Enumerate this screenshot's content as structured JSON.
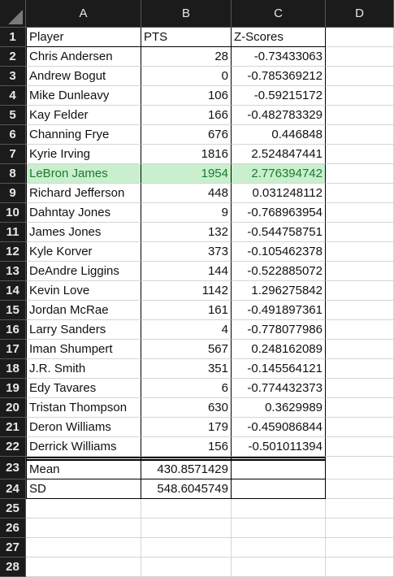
{
  "columns": [
    "A",
    "B",
    "C",
    "D"
  ],
  "header_row": {
    "num": "1",
    "player": "Player",
    "pts": "PTS",
    "z": "Z-Scores"
  },
  "rows": [
    {
      "num": "2",
      "player": "Chris Andersen",
      "pts": "28",
      "z": "-0.73433063"
    },
    {
      "num": "3",
      "player": "Andrew Bogut",
      "pts": "0",
      "z": "-0.785369212"
    },
    {
      "num": "4",
      "player": "Mike Dunleavy",
      "pts": "106",
      "z": "-0.59215172"
    },
    {
      "num": "5",
      "player": "Kay Felder",
      "pts": "166",
      "z": "-0.482783329"
    },
    {
      "num": "6",
      "player": "Channing Frye",
      "pts": "676",
      "z": "0.446848"
    },
    {
      "num": "7",
      "player": "Kyrie Irving",
      "pts": "1816",
      "z": "2.524847441"
    },
    {
      "num": "8",
      "player": "LeBron James",
      "pts": "1954",
      "z": "2.776394742",
      "highlight": true
    },
    {
      "num": "9",
      "player": "Richard Jefferson",
      "pts": "448",
      "z": "0.031248112"
    },
    {
      "num": "10",
      "player": "Dahntay Jones",
      "pts": "9",
      "z": "-0.768963954"
    },
    {
      "num": "11",
      "player": "James Jones",
      "pts": "132",
      "z": "-0.544758751"
    },
    {
      "num": "12",
      "player": "Kyle Korver",
      "pts": "373",
      "z": "-0.105462378"
    },
    {
      "num": "13",
      "player": "DeAndre Liggins",
      "pts": "144",
      "z": "-0.522885072"
    },
    {
      "num": "14",
      "player": "Kevin Love",
      "pts": "1142",
      "z": "1.296275842"
    },
    {
      "num": "15",
      "player": "Jordan McRae",
      "pts": "161",
      "z": "-0.491897361"
    },
    {
      "num": "16",
      "player": "Larry Sanders",
      "pts": "4",
      "z": "-0.778077986"
    },
    {
      "num": "17",
      "player": "Iman Shumpert",
      "pts": "567",
      "z": "0.248162089"
    },
    {
      "num": "18",
      "player": "J.R. Smith",
      "pts": "351",
      "z": "-0.145564121"
    },
    {
      "num": "19",
      "player": "Edy Tavares",
      "pts": "6",
      "z": "-0.774432373"
    },
    {
      "num": "20",
      "player": "Tristan Thompson",
      "pts": "630",
      "z": "0.3629989"
    },
    {
      "num": "21",
      "player": "Deron Williams",
      "pts": "179",
      "z": "-0.459086844"
    },
    {
      "num": "22",
      "player": "Derrick Williams",
      "pts": "156",
      "z": "-0.501011394"
    }
  ],
  "summary": [
    {
      "num": "23",
      "label": "Mean",
      "value": "430.8571429"
    },
    {
      "num": "24",
      "label": "SD",
      "value": "548.6045749"
    }
  ],
  "empty_rows": [
    "25",
    "26",
    "27",
    "28"
  ],
  "colors": {
    "header_bg": "#1b1b1b",
    "highlight_bg": "#c9efce",
    "highlight_text": "#1a7a2a"
  }
}
